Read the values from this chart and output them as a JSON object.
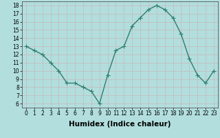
{
  "x": [
    0,
    1,
    2,
    3,
    4,
    5,
    6,
    7,
    8,
    9,
    10,
    11,
    12,
    13,
    14,
    15,
    16,
    17,
    18,
    19,
    20,
    21,
    22,
    23
  ],
  "y": [
    13,
    12.5,
    12,
    11,
    10,
    8.5,
    8.5,
    8,
    7.5,
    6,
    9.5,
    12.5,
    13,
    15.5,
    16.5,
    17.5,
    18,
    17.5,
    16.5,
    14.5,
    11.5,
    9.5,
    8.5,
    10
  ],
  "line_color": "#2e7d6e",
  "marker": "+",
  "marker_size": 4,
  "marker_linewidth": 0.8,
  "background_color": "#b2dede",
  "grid_color": "#c8b8b8",
  "xlabel": "Humidex (Indice chaleur)",
  "ylabel": "",
  "xlim": [
    -0.5,
    23.5
  ],
  "ylim": [
    5.5,
    18.5
  ],
  "yticks": [
    6,
    7,
    8,
    9,
    10,
    11,
    12,
    13,
    14,
    15,
    16,
    17,
    18
  ],
  "xticks": [
    0,
    1,
    2,
    3,
    4,
    5,
    6,
    7,
    8,
    9,
    10,
    11,
    12,
    13,
    14,
    15,
    16,
    17,
    18,
    19,
    20,
    21,
    22,
    23
  ],
  "tick_label_fontsize": 5.5,
  "xlabel_fontsize": 7.5,
  "line_width": 1.0
}
